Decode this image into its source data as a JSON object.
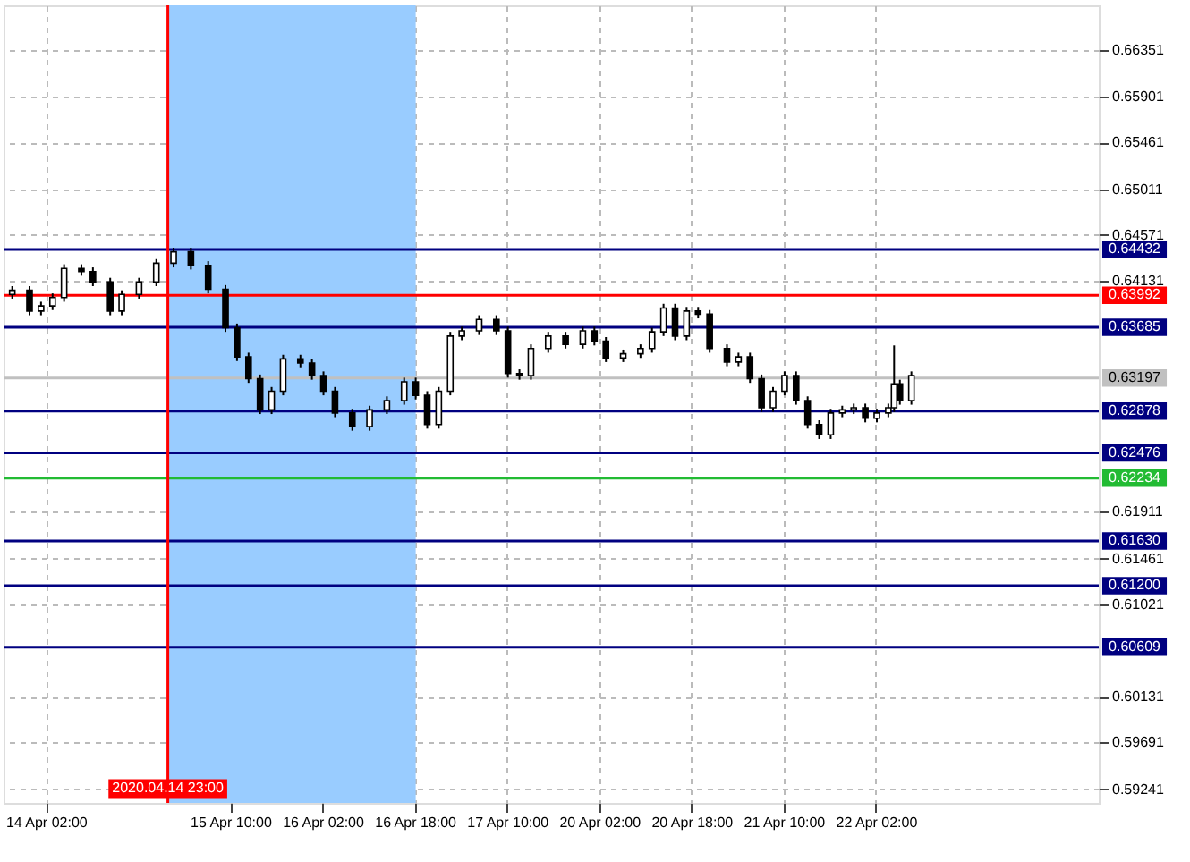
{
  "chart_data": {
    "type": "candlestick",
    "categories": [
      null,
      null,
      null,
      null,
      null,
      null,
      null,
      "14 Apr 02:00",
      null,
      null,
      null,
      null,
      null,
      null,
      null,
      null,
      null,
      null,
      null,
      null,
      null,
      null,
      null,
      null,
      null,
      null,
      null,
      null,
      "2020.04.14 23:00",
      null,
      null,
      null,
      null,
      null,
      null,
      null,
      null,
      null,
      null,
      "15 Apr 10:00",
      null,
      null,
      null,
      null,
      null,
      null,
      null,
      null,
      null,
      null,
      null,
      null,
      null,
      null,
      null,
      "16 Apr 02:00",
      null,
      null,
      null,
      null,
      null,
      null,
      null,
      null,
      null,
      null,
      null,
      null,
      null,
      null,
      null,
      "16 Apr 18:00",
      null,
      null,
      null,
      null,
      null,
      null,
      null,
      null,
      null,
      null,
      null,
      null,
      null,
      null,
      null,
      "17 Apr 10:00",
      null,
      null,
      null,
      null,
      null,
      null,
      null,
      null,
      null,
      null,
      null,
      null,
      null,
      null,
      null,
      "20 Apr 02:00",
      null,
      null,
      null,
      null,
      null,
      null,
      null,
      null,
      null,
      null,
      null,
      null,
      null,
      null,
      null,
      "20 Apr 18:00",
      null,
      null,
      null,
      null,
      null,
      null,
      null,
      null,
      null,
      null,
      null,
      null,
      null,
      null,
      null,
      "21 Apr 10:00",
      null,
      null,
      null,
      null,
      null,
      null,
      null,
      null,
      null,
      null,
      null,
      null,
      null,
      null,
      null,
      "22 Apr 02:00",
      null,
      null,
      null,
      null,
      null,
      null,
      null,
      null,
      null,
      null,
      null,
      null,
      null,
      null,
      null,
      null,
      null,
      null,
      null,
      null,
      null,
      null,
      null,
      null,
      null,
      null,
      null,
      null,
      null,
      null,
      null,
      null,
      null,
      null,
      null,
      null,
      null,
      null
    ],
    "ohlc": [
      null,
      [
        0.64,
        0.6408,
        0.6396,
        0.6404
      ],
      null,
      null,
      [
        0.6404,
        0.6408,
        0.638,
        0.6384
      ],
      null,
      [
        0.6384,
        0.6393,
        0.638,
        0.6389
      ],
      null,
      [
        0.6389,
        0.6401,
        0.6385,
        0.6397
      ],
      null,
      [
        0.6397,
        0.6429,
        0.6393,
        0.6425
      ],
      null,
      null,
      [
        0.6425,
        0.6429,
        0.6418,
        0.6422
      ],
      null,
      [
        0.6422,
        0.6426,
        0.6408,
        0.6412
      ],
      null,
      null,
      [
        0.6412,
        0.6416,
        0.638,
        0.6384
      ],
      null,
      [
        0.6384,
        0.6404,
        0.638,
        0.64
      ],
      null,
      null,
      [
        0.64,
        0.6416,
        0.6396,
        0.6412
      ],
      null,
      null,
      [
        0.6412,
        0.6434,
        0.6408,
        0.643
      ],
      null,
      null,
      [
        0.643,
        0.6445,
        0.6426,
        0.6441
      ],
      null,
      null,
      [
        0.6441,
        0.6445,
        0.6424,
        0.6428
      ],
      null,
      null,
      [
        0.6428,
        0.6432,
        0.6401,
        0.6405
      ],
      null,
      null,
      [
        0.6405,
        0.6409,
        0.6364,
        0.6368
      ],
      null,
      [
        0.6368,
        0.6372,
        0.6336,
        0.634
      ],
      null,
      [
        0.634,
        0.6344,
        0.6315,
        0.6319
      ],
      null,
      [
        0.6319,
        0.6323,
        0.6285,
        0.6289
      ],
      null,
      [
        0.6289,
        0.6311,
        0.6285,
        0.6307
      ],
      null,
      [
        0.6307,
        0.6342,
        0.6303,
        0.6338
      ],
      null,
      null,
      [
        0.6338,
        0.6342,
        0.633,
        0.6334
      ],
      null,
      [
        0.6334,
        0.6338,
        0.6318,
        0.6322
      ],
      null,
      [
        0.6322,
        0.6326,
        0.6303,
        0.6307
      ],
      null,
      [
        0.6307,
        0.6311,
        0.6282,
        0.6286
      ],
      null,
      null,
      [
        0.6286,
        0.629,
        0.6269,
        0.6273
      ],
      null,
      null,
      [
        0.6273,
        0.6293,
        0.6269,
        0.6289
      ],
      null,
      null,
      [
        0.6289,
        0.6302,
        0.6285,
        0.6298
      ],
      null,
      null,
      [
        0.6298,
        0.632,
        0.6294,
        0.6316
      ],
      null,
      [
        0.6316,
        0.632,
        0.6299,
        0.6303
      ],
      null,
      [
        0.6303,
        0.6307,
        0.6271,
        0.6275
      ],
      null,
      [
        0.6275,
        0.6311,
        0.6271,
        0.6307
      ],
      null,
      [
        0.6307,
        0.6364,
        0.6303,
        0.636
      ],
      null,
      [
        0.636,
        0.6369,
        0.6356,
        0.6365
      ],
      null,
      null,
      [
        0.6365,
        0.638,
        0.6361,
        0.6376
      ],
      null,
      null,
      [
        0.6376,
        0.638,
        0.6361,
        0.6365
      ],
      null,
      [
        0.6365,
        0.6369,
        0.632,
        0.6324
      ],
      null,
      [
        0.6324,
        0.6328,
        0.6318,
        0.6322
      ],
      null,
      [
        0.6322,
        0.6352,
        0.6318,
        0.6348
      ],
      null,
      null,
      [
        0.6348,
        0.6364,
        0.6344,
        0.636
      ],
      null,
      null,
      [
        0.636,
        0.6364,
        0.6348,
        0.6352
      ],
      null,
      null,
      [
        0.6352,
        0.6369,
        0.6348,
        0.6365
      ],
      null,
      [
        0.6365,
        0.6369,
        0.6351,
        0.6355
      ],
      null,
      [
        0.6355,
        0.6359,
        0.6335,
        0.6339
      ],
      null,
      null,
      [
        0.6339,
        0.6347,
        0.6335,
        0.6343
      ],
      null,
      null,
      [
        0.6343,
        0.6352,
        0.6339,
        0.6348
      ],
      null,
      [
        0.6348,
        0.6368,
        0.6344,
        0.6364
      ],
      null,
      [
        0.6364,
        0.6391,
        0.636,
        0.6387
      ],
      null,
      [
        0.6387,
        0.6391,
        0.6356,
        0.636
      ],
      null,
      [
        0.636,
        0.6388,
        0.6356,
        0.6384
      ],
      null,
      [
        0.6384,
        0.6388,
        0.6377,
        0.6381
      ],
      null,
      [
        0.6381,
        0.6385,
        0.6344,
        0.6348
      ],
      null,
      null,
      [
        0.6348,
        0.6352,
        0.6331,
        0.6335
      ],
      null,
      [
        0.6335,
        0.6344,
        0.6331,
        0.634
      ],
      null,
      [
        0.634,
        0.6344,
        0.6315,
        0.6319
      ],
      null,
      [
        0.6319,
        0.6323,
        0.6287,
        0.6291
      ],
      null,
      [
        0.6291,
        0.6311,
        0.6287,
        0.6307
      ],
      null,
      [
        0.6307,
        0.6326,
        0.6303,
        0.6322
      ],
      null,
      [
        0.6322,
        0.6326,
        0.6294,
        0.6298
      ],
      null,
      [
        0.6298,
        0.6302,
        0.6271,
        0.6275
      ],
      null,
      [
        0.6275,
        0.6279,
        0.6261,
        0.6265
      ],
      null,
      [
        0.6265,
        0.629,
        0.6261,
        0.6286
      ],
      null,
      [
        0.6286,
        0.6293,
        0.6282,
        0.6289
      ],
      null,
      [
        0.6289,
        0.6295,
        0.6285,
        0.6291
      ],
      null,
      [
        0.6291,
        0.6295,
        0.6277,
        0.6281
      ],
      null,
      [
        0.6281,
        0.629,
        0.6277,
        0.6286
      ],
      null,
      [
        0.6286,
        0.6295,
        0.6282,
        0.6291
      ],
      [
        0.6291,
        0.6351,
        0.6287,
        0.6314
      ],
      [
        0.6314,
        0.6318,
        0.6294,
        0.6298
      ],
      null,
      [
        0.6298,
        0.6326,
        0.6294,
        0.6322
      ],
      null,
      null,
      null,
      null,
      null,
      null,
      null,
      null,
      null,
      null,
      null,
      null,
      null,
      null,
      null,
      null,
      null,
      null,
      null,
      null,
      null,
      null,
      null,
      null,
      null,
      null,
      null,
      null,
      null,
      null,
      null,
      null
    ],
    "ylim": [
      0.5911,
      0.6678
    ],
    "yticks": [
      0.66351,
      0.65901,
      0.65461,
      0.65011,
      0.64571,
      0.64131,
      0.61911,
      0.61461,
      0.61021,
      0.60131,
      0.59691,
      0.59241
    ],
    "ref_lines": [
      {
        "axis": "y",
        "value": 0.64432,
        "label": "0.64432",
        "color": "#000080"
      },
      {
        "axis": "y",
        "value": 0.63992,
        "label": "0.63992",
        "color": "#ff0000"
      },
      {
        "axis": "y",
        "value": 0.63685,
        "label": "0.63685",
        "color": "#000080"
      },
      {
        "axis": "y",
        "value": 0.63197,
        "label": "0.63197",
        "color": "#c0c0c0"
      },
      {
        "axis": "y",
        "value": 0.62878,
        "label": "0.62878",
        "color": "#000080"
      },
      {
        "axis": "y",
        "value": 0.62476,
        "label": "0.62476",
        "color": "#000080"
      },
      {
        "axis": "y",
        "value": 0.62234,
        "label": "0.62234",
        "color": "#22bb33"
      },
      {
        "axis": "y",
        "value": 0.6163,
        "label": "0.61630",
        "color": "#000080"
      },
      {
        "axis": "y",
        "value": 0.612,
        "label": "0.61200",
        "color": "#000080"
      },
      {
        "axis": "y",
        "value": 0.60609,
        "label": "0.60609",
        "color": "#000080"
      },
      {
        "axis": "x",
        "value": "2020.04.14 23:00",
        "color": "#ff0000"
      }
    ],
    "bands": [
      {
        "axis": "x",
        "from": "2020.04.14 23:00",
        "to": "16 Apr 18:00",
        "color": "#99ccff"
      }
    ],
    "grid": true
  }
}
